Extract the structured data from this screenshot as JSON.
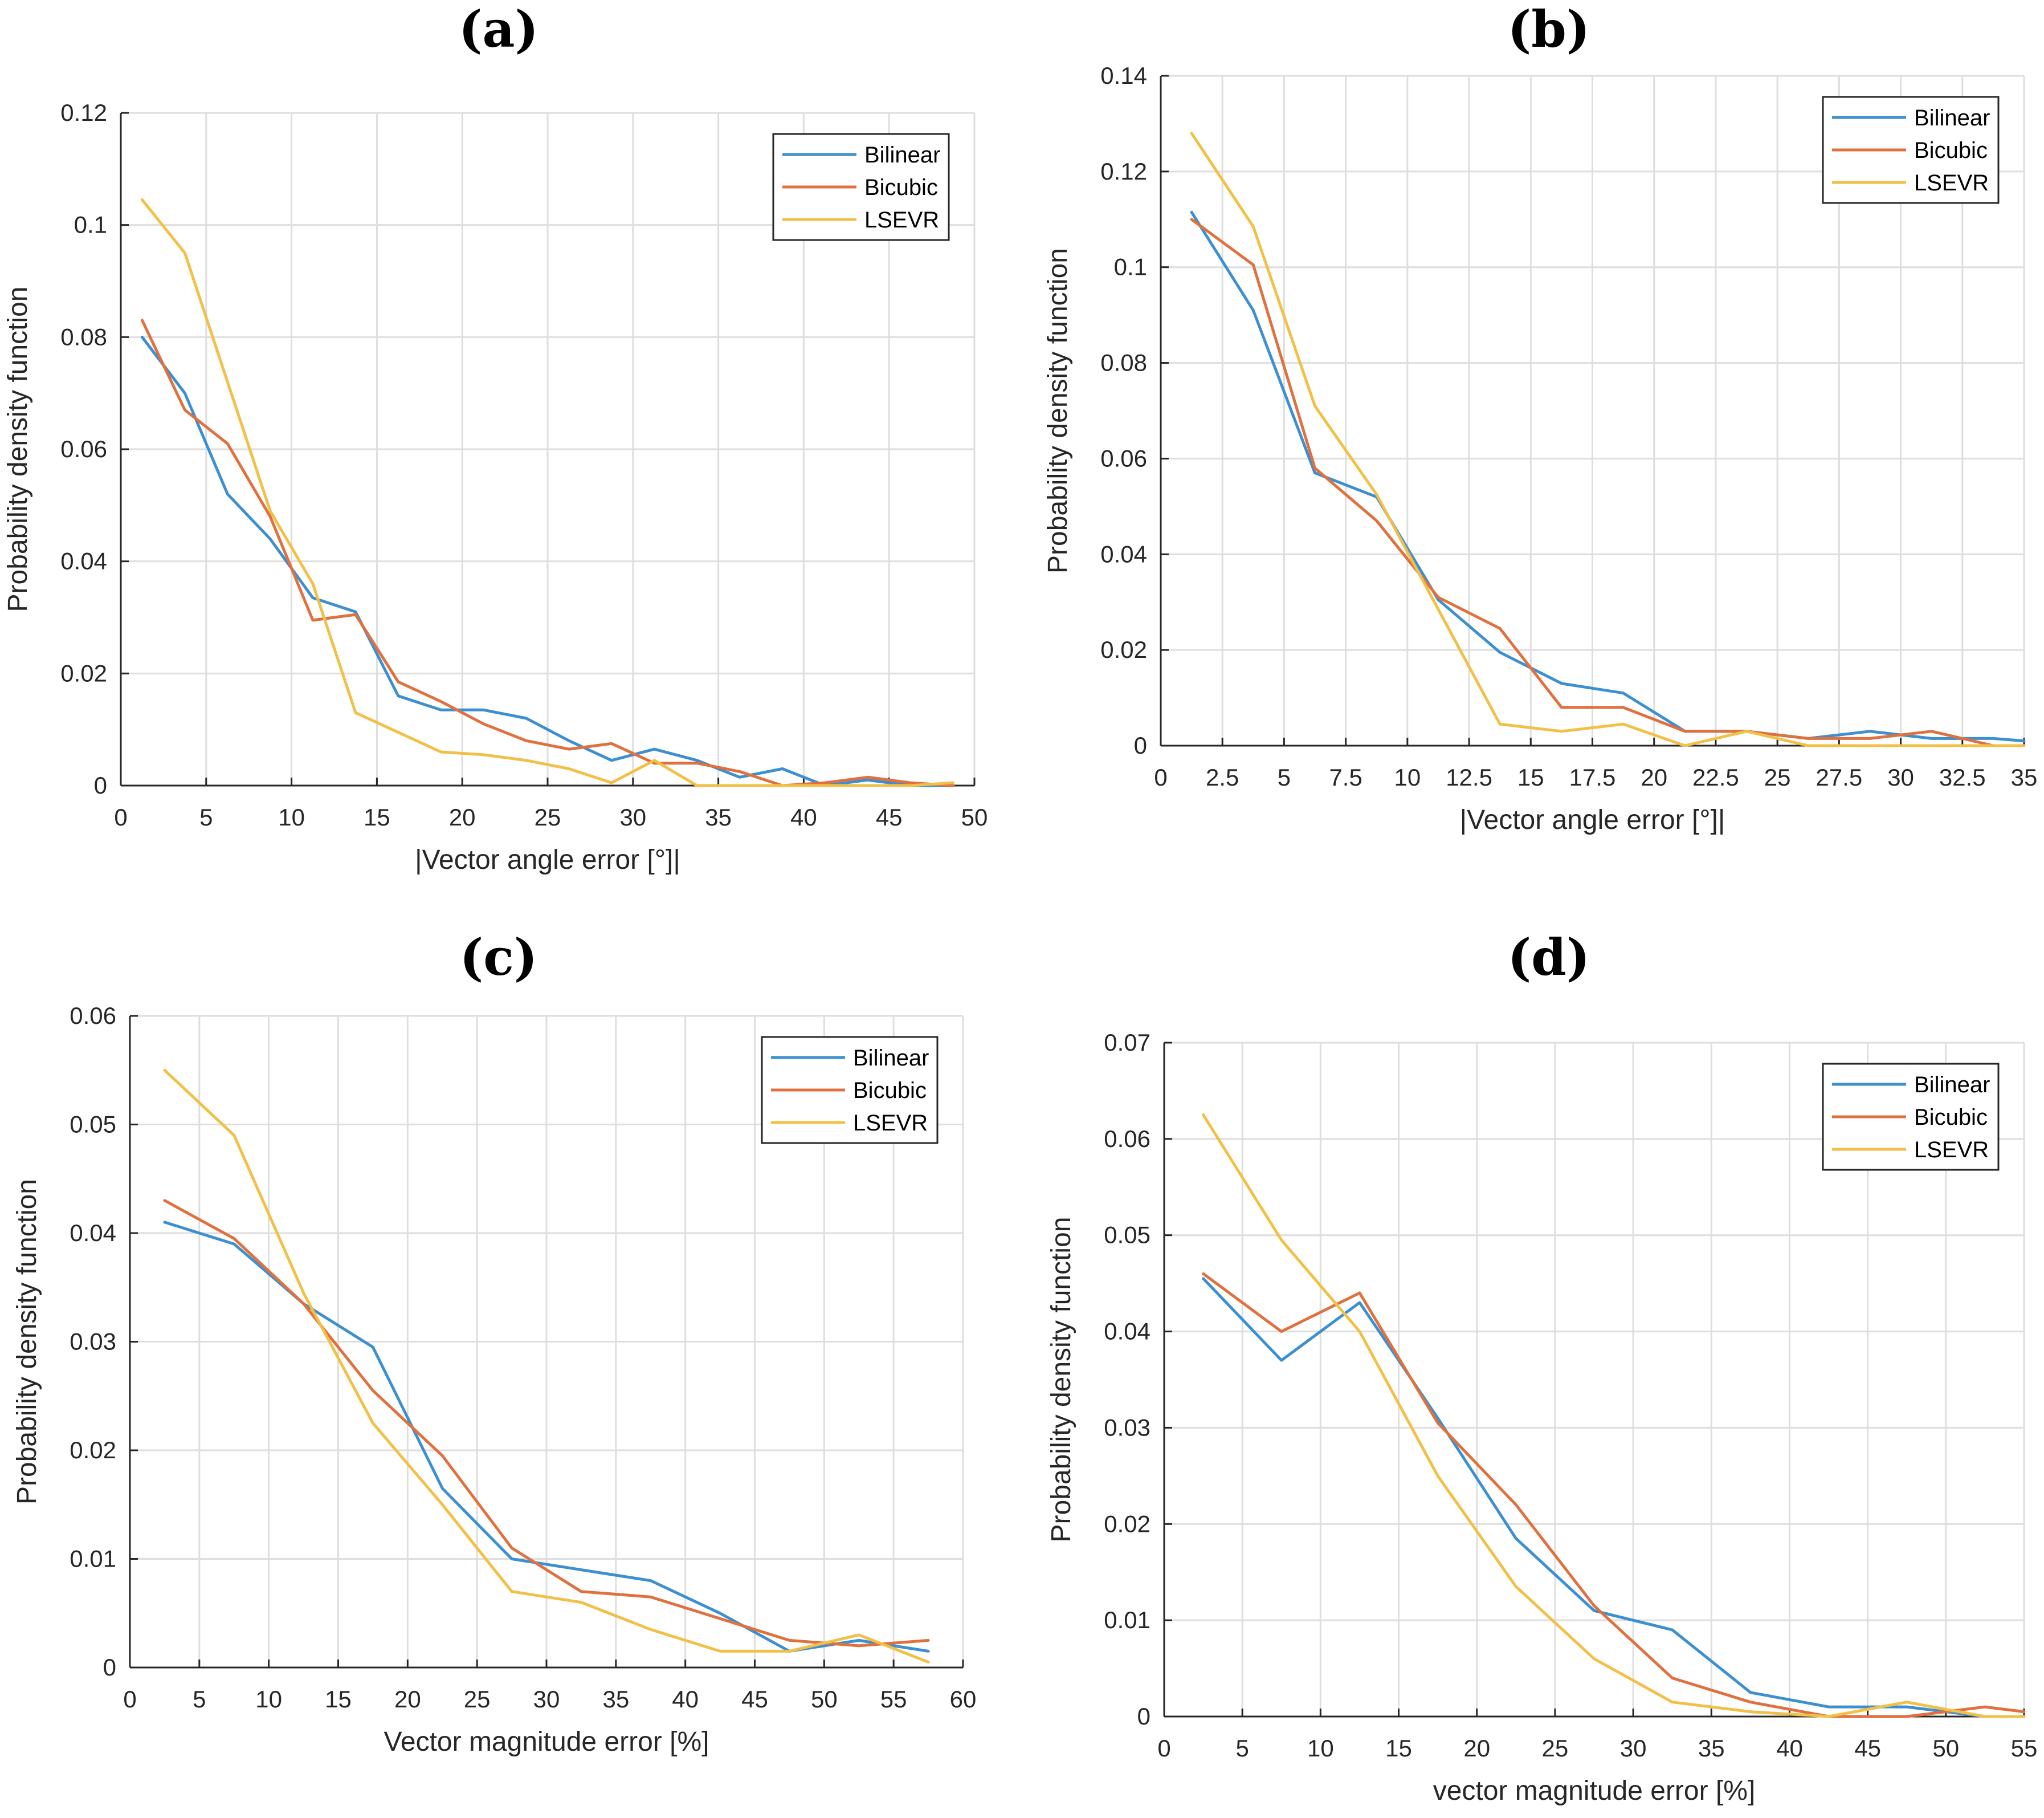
{
  "colors": {
    "bilinear": "#3c8fd0",
    "bicubic": "#e0713f",
    "lsevr": "#f2c046",
    "grid": "#dedede",
    "axis": "#262626"
  },
  "chart_data": [
    {
      "id": "a",
      "panel_label": "(a)",
      "type": "line",
      "title": "",
      "xlabel": "|Vector angle error [°]|",
      "ylabel": "Probability density function",
      "xlim": [
        0,
        50
      ],
      "ylim": [
        0,
        0.12
      ],
      "xticks": [
        0,
        5,
        10,
        15,
        20,
        25,
        30,
        35,
        40,
        45,
        50
      ],
      "xtick_labels": [
        "0",
        "5",
        "10",
        "15",
        "20",
        "25",
        "30",
        "35",
        "40",
        "45",
        "50"
      ],
      "yticks": [
        0,
        0.02,
        0.04,
        0.06,
        0.08,
        0.1,
        0.12
      ],
      "ytick_labels": [
        "0",
        "0.02",
        "0.04",
        "0.06",
        "0.08",
        "0.1",
        "0.12"
      ],
      "grid": true,
      "legend_position": "top-right",
      "series": [
        {
          "name": "Bilinear",
          "color_key": "bilinear",
          "x": [
            1.25,
            3.75,
            6.25,
            8.75,
            11.25,
            13.75,
            16.25,
            18.75,
            21.25,
            23.75,
            26.25,
            28.75,
            31.25,
            33.75,
            36.25,
            38.75,
            41.25,
            43.75,
            46.25,
            48.75
          ],
          "y": [
            0.08,
            0.07,
            0.052,
            0.044,
            0.0335,
            0.031,
            0.016,
            0.0135,
            0.0135,
            0.012,
            0.008,
            0.0045,
            0.0065,
            0.0045,
            0.0015,
            0.003,
            0.0,
            0.001,
            0.0,
            0.0
          ]
        },
        {
          "name": "Bicubic",
          "color_key": "bicubic",
          "x": [
            1.25,
            3.75,
            6.25,
            8.75,
            11.25,
            13.75,
            16.25,
            18.75,
            21.25,
            23.75,
            26.25,
            28.75,
            31.25,
            33.75,
            36.25,
            38.75,
            41.25,
            43.75,
            46.25,
            48.75
          ],
          "y": [
            0.083,
            0.067,
            0.061,
            0.048,
            0.0295,
            0.0305,
            0.0185,
            0.015,
            0.011,
            0.008,
            0.0065,
            0.0075,
            0.004,
            0.004,
            0.0025,
            0.0,
            0.0005,
            0.0015,
            0.0005,
            0.0
          ]
        },
        {
          "name": "LSEVR",
          "color_key": "lsevr",
          "x": [
            1.25,
            3.75,
            6.25,
            8.75,
            11.25,
            13.75,
            16.25,
            18.75,
            21.25,
            23.75,
            26.25,
            28.75,
            31.25,
            33.75,
            36.25,
            38.75,
            41.25,
            43.75,
            46.25,
            48.75
          ],
          "y": [
            0.1045,
            0.095,
            0.072,
            0.049,
            0.036,
            0.013,
            0.0095,
            0.006,
            0.0055,
            0.0045,
            0.003,
            0.0005,
            0.0045,
            0.0,
            0.0,
            0.0,
            0.0,
            0.0,
            0.0,
            0.0005
          ]
        }
      ]
    },
    {
      "id": "b",
      "panel_label": "(b)",
      "type": "line",
      "title": "",
      "xlabel": "|Vector angle error [°]|",
      "ylabel": "Probability density function",
      "xlim": [
        0,
        35
      ],
      "ylim": [
        0,
        0.14
      ],
      "xticks": [
        0,
        2.5,
        5,
        7.5,
        10,
        12.5,
        15,
        17.5,
        20,
        22.5,
        25,
        27.5,
        30,
        32.5,
        35
      ],
      "xtick_labels": [
        "0",
        "2.5",
        "5",
        "7.5",
        "10",
        "12.5",
        "15",
        "17.5",
        "20",
        "22.5",
        "25",
        "27.5",
        "30",
        "32.5",
        "35"
      ],
      "yticks": [
        0,
        0.02,
        0.04,
        0.06,
        0.08,
        0.1,
        0.12,
        0.14
      ],
      "ytick_labels": [
        "0",
        "0.02",
        "0.04",
        "0.06",
        "0.08",
        "0.1",
        "0.12",
        "0.14"
      ],
      "grid": true,
      "legend_position": "top-right",
      "series": [
        {
          "name": "Bilinear",
          "color_key": "bilinear",
          "x": [
            1.25,
            3.75,
            6.25,
            8.75,
            11.25,
            13.75,
            16.25,
            18.75,
            21.25,
            23.75,
            26.25,
            28.75,
            31.25,
            33.75,
            35
          ],
          "y": [
            0.1115,
            0.091,
            0.057,
            0.052,
            0.0305,
            0.0195,
            0.013,
            0.011,
            0.003,
            0.003,
            0.0015,
            0.003,
            0.0015,
            0.0015,
            0.001
          ]
        },
        {
          "name": "Bicubic",
          "color_key": "bicubic",
          "x": [
            1.25,
            3.75,
            6.25,
            8.75,
            11.25,
            13.75,
            16.25,
            18.75,
            21.25,
            23.75,
            26.25,
            28.75,
            31.25,
            33.75
          ],
          "y": [
            0.11,
            0.1005,
            0.058,
            0.047,
            0.031,
            0.0245,
            0.008,
            0.008,
            0.003,
            0.003,
            0.0015,
            0.0015,
            0.003,
            0.0
          ]
        },
        {
          "name": "LSEVR",
          "color_key": "lsevr",
          "x": [
            1.25,
            3.75,
            6.25,
            8.75,
            11.25,
            13.75,
            16.25,
            18.75,
            21.25,
            23.75,
            26.25,
            28.75,
            31.25,
            33.75,
            35
          ],
          "y": [
            0.128,
            0.1085,
            0.071,
            0.0525,
            0.0285,
            0.0045,
            0.003,
            0.0045,
            0.0,
            0.003,
            0.0,
            0.0,
            0.0,
            0.0,
            0.0
          ]
        }
      ]
    },
    {
      "id": "c",
      "panel_label": "(c)",
      "type": "line",
      "title": "",
      "xlabel": "Vector magnitude error [%]",
      "ylabel": "Probability density function",
      "xlim": [
        0,
        60
      ],
      "ylim": [
        0,
        0.06
      ],
      "xticks": [
        0,
        5,
        10,
        15,
        20,
        25,
        30,
        35,
        40,
        45,
        50,
        55,
        60
      ],
      "xtick_labels": [
        "0",
        "5",
        "10",
        "15",
        "20",
        "25",
        "30",
        "35",
        "40",
        "45",
        "50",
        "55",
        "60"
      ],
      "yticks": [
        0,
        0.01,
        0.02,
        0.03,
        0.04,
        0.05,
        0.06
      ],
      "ytick_labels": [
        "0",
        "0.01",
        "0.02",
        "0.03",
        "0.04",
        "0.05",
        "0.06"
      ],
      "grid": true,
      "legend_position": "top-right",
      "series": [
        {
          "name": "Bilinear",
          "color_key": "bilinear",
          "x": [
            2.5,
            7.5,
            12.5,
            17.5,
            22.5,
            27.5,
            32.5,
            37.5,
            42.5,
            47.5,
            52.5,
            57.5
          ],
          "y": [
            0.041,
            0.039,
            0.0335,
            0.0295,
            0.0165,
            0.01,
            0.009,
            0.008,
            0.005,
            0.0015,
            0.0025,
            0.0015
          ]
        },
        {
          "name": "Bicubic",
          "color_key": "bicubic",
          "x": [
            2.5,
            7.5,
            12.5,
            17.5,
            22.5,
            27.5,
            32.5,
            37.5,
            42.5,
            47.5,
            52.5,
            57.5
          ],
          "y": [
            0.043,
            0.0395,
            0.0335,
            0.0255,
            0.0195,
            0.011,
            0.007,
            0.0065,
            0.0045,
            0.0025,
            0.002,
            0.0025
          ]
        },
        {
          "name": "LSEVR",
          "color_key": "lsevr",
          "x": [
            2.5,
            7.5,
            12.5,
            17.5,
            22.5,
            27.5,
            32.5,
            37.5,
            42.5,
            47.5,
            52.5,
            57.5
          ],
          "y": [
            0.055,
            0.049,
            0.0345,
            0.0225,
            0.015,
            0.007,
            0.006,
            0.0035,
            0.0015,
            0.0015,
            0.003,
            0.0005
          ]
        }
      ]
    },
    {
      "id": "d",
      "panel_label": "(d)",
      "type": "line",
      "title": "",
      "xlabel": "vector magnitude error [%]",
      "ylabel": "Probability density function",
      "xlim": [
        0,
        55
      ],
      "ylim": [
        0,
        0.07
      ],
      "xticks": [
        0,
        5,
        10,
        15,
        20,
        25,
        30,
        35,
        40,
        45,
        50,
        55
      ],
      "xtick_labels": [
        "0",
        "5",
        "10",
        "15",
        "20",
        "25",
        "30",
        "35",
        "40",
        "45",
        "50",
        "55"
      ],
      "yticks": [
        0,
        0.01,
        0.02,
        0.03,
        0.04,
        0.05,
        0.06,
        0.07
      ],
      "ytick_labels": [
        "0",
        "0.01",
        "0.02",
        "0.03",
        "0.04",
        "0.05",
        "0.06",
        "0.07"
      ],
      "grid": true,
      "legend_position": "top-right",
      "series": [
        {
          "name": "Bilinear",
          "color_key": "bilinear",
          "x": [
            2.5,
            7.5,
            12.5,
            17.5,
            22.5,
            27.5,
            32.5,
            37.5,
            42.5,
            47.5,
            52.5,
            55
          ],
          "y": [
            0.0455,
            0.037,
            0.043,
            0.031,
            0.0185,
            0.011,
            0.009,
            0.0025,
            0.001,
            0.001,
            0.0,
            0.0
          ]
        },
        {
          "name": "Bicubic",
          "color_key": "bicubic",
          "x": [
            2.5,
            7.5,
            12.5,
            17.5,
            22.5,
            27.5,
            32.5,
            37.5,
            42.5,
            47.5,
            52.5,
            55
          ],
          "y": [
            0.046,
            0.04,
            0.044,
            0.0305,
            0.022,
            0.0115,
            0.004,
            0.0015,
            0.0,
            0.0,
            0.001,
            0.0005
          ]
        },
        {
          "name": "LSEVR",
          "color_key": "lsevr",
          "x": [
            2.5,
            7.5,
            12.5,
            17.5,
            22.5,
            27.5,
            32.5,
            37.5,
            42.5,
            47.5,
            52.5,
            55
          ],
          "y": [
            0.0625,
            0.0495,
            0.04,
            0.025,
            0.0135,
            0.006,
            0.0015,
            0.0005,
            0.0,
            0.0015,
            0.0,
            0.0
          ]
        }
      ]
    }
  ]
}
